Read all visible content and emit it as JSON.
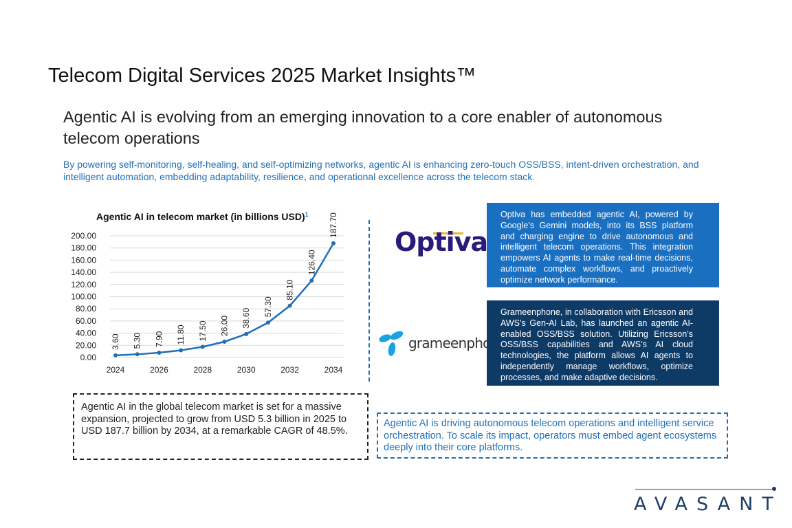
{
  "title": "Telecom Digital Services 2025 Market Insights™",
  "subtitle": "Agentic AI is evolving from an emerging innovation to a core enabler of autonomous telecom operations",
  "description": "By powering self-monitoring, self-healing, and self-optimizing networks, agentic AI is enhancing zero-touch OSS/BSS, intent-driven orchestration, and intelligent automation, embedding adaptability, resilience, and operational excellence across the telecom stack.",
  "chart_data": {
    "type": "line",
    "title": "Agentic AI in telecom market (in billions USD)",
    "title_footnote": "1",
    "x": [
      2024,
      2025,
      2026,
      2027,
      2028,
      2029,
      2030,
      2031,
      2032,
      2033,
      2034
    ],
    "values": [
      3.6,
      5.3,
      7.9,
      11.8,
      17.5,
      26.0,
      38.6,
      57.3,
      85.1,
      126.4,
      187.7
    ],
    "data_labels": [
      "3.60",
      "5.30",
      "7.90",
      "11.80",
      "17.50",
      "26.00",
      "38.60",
      "57.30",
      "85.10",
      "126.40",
      "187.70"
    ],
    "xticks": [
      "2024",
      "2026",
      "2028",
      "2030",
      "2032",
      "2034"
    ],
    "yticks": [
      "0.00",
      "20.00",
      "40.00",
      "60.00",
      "80.00",
      "100.00",
      "120.00",
      "140.00",
      "160.00",
      "180.00",
      "200.00"
    ],
    "ylim": [
      0,
      200
    ],
    "grid": true,
    "line_color": "#1f6fb8"
  },
  "cards": [
    {
      "logo": "Optiva",
      "text": "Optiva has embedded agentic AI, powered by Google’s Gemini models, into its BSS platform and charging engine to drive autonomous and intelligent telecom operations. This integration empowers AI agents to make real-time decisions, automate complex workflows, and proactively optimize network performance.",
      "color": "#1a6fc0"
    },
    {
      "logo": "grameenphone",
      "text": "Grameenphone, in collaboration with Ericsson and AWS’s Gen-AI Lab, has launched an agentic AI-enabled OSS/BSS solution. Utilizing Ericsson’s OSS/BSS capabilities and AWS’s AI cloud technologies, the platform allows AI agents to independently manage workflows, optimize processes, and make adaptive decisions.",
      "color": "#0e3a66"
    }
  ],
  "callout_left": "Agentic AI in the global telecom market is set for a massive expansion, projected to grow from USD 5.3 billion in 2025 to USD 187.7 billion by 2034, at a remarkable CAGR of 48.5%.",
  "callout_right": "Agentic AI is driving autonomous telecom operations and intelligent service orchestration. To scale its impact, operators must embed agent ecosystems deeply into their core platforms.",
  "brand": "AVASANT"
}
